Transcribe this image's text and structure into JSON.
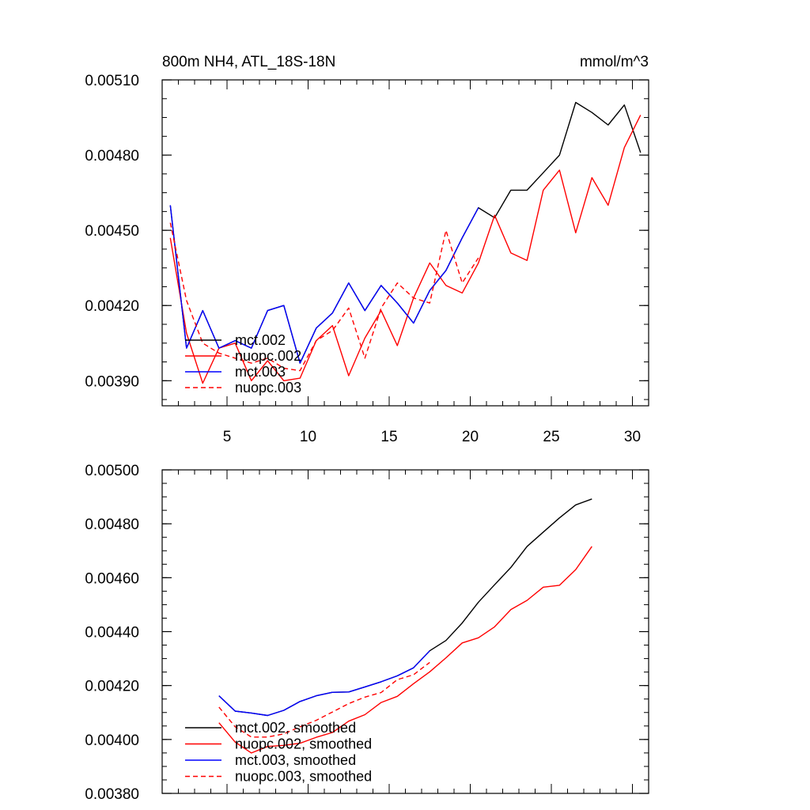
{
  "chart_data": [
    {
      "type": "line",
      "title": "800m NH4, ATL_18S-18N",
      "units": "mmol/m^3",
      "xlabel": "",
      "ylabel": "",
      "xlim": [
        1,
        31
      ],
      "ylim": [
        0.0038,
        0.0051
      ],
      "xticks": [
        "5",
        "10",
        "15",
        "20",
        "25",
        "30"
      ],
      "yticks": [
        "0.00390",
        "0.00420",
        "0.00450",
        "0.00480",
        "0.00510"
      ],
      "legend_position": "bottom-left",
      "series": [
        {
          "name": "mct.002",
          "color": "#000000",
          "dash": false,
          "x": [
            1.5,
            2.5,
            3.5,
            4.5,
            5.5,
            6.5,
            7.5,
            8.5,
            9.5,
            10.5,
            11.5,
            12.5,
            13.5,
            14.5,
            15.5,
            16.5,
            17.5,
            18.5,
            19.5,
            20.5,
            21.5,
            22.5,
            23.5,
            24.5,
            25.5,
            26.5,
            27.5,
            28.5,
            29.5,
            30.5
          ],
          "values": [
            0.0046,
            0.00403,
            0.00418,
            0.00403,
            0.00406,
            0.00403,
            0.00418,
            0.0042,
            0.00397,
            0.00411,
            0.00417,
            0.00429,
            0.00418,
            0.00428,
            0.00421,
            0.00413,
            0.00426,
            0.00434,
            0.00447,
            0.00459,
            0.00455,
            0.00466,
            0.00466,
            0.00473,
            0.0048,
            0.00501,
            0.00497,
            0.00492,
            0.005,
            0.00481
          ]
        },
        {
          "name": "nuopc.002",
          "color": "#ff0000",
          "dash": false,
          "x": [
            1.5,
            2.5,
            3.5,
            4.5,
            5.5,
            6.5,
            7.5,
            8.5,
            9.5,
            10.5,
            11.5,
            12.5,
            13.5,
            14.5,
            15.5,
            16.5,
            17.5,
            18.5,
            19.5,
            20.5,
            21.5,
            22.5,
            23.5,
            24.5,
            25.5,
            26.5,
            27.5,
            28.5,
            29.5,
            30.5
          ],
          "values": [
            0.00447,
            0.00409,
            0.00389,
            0.00403,
            0.00405,
            0.0039,
            0.00398,
            0.0039,
            0.00391,
            0.00406,
            0.00412,
            0.00392,
            0.00407,
            0.00418,
            0.00404,
            0.00423,
            0.00437,
            0.00428,
            0.00425,
            0.00437,
            0.00456,
            0.00441,
            0.00438,
            0.00466,
            0.00474,
            0.00449,
            0.00471,
            0.0046,
            0.00483,
            0.00496
          ]
        },
        {
          "name": "mct.003",
          "color": "#0000ff",
          "dash": false,
          "x": [
            1.5,
            2.5,
            3.5,
            4.5,
            5.5,
            6.5,
            7.5,
            8.5,
            9.5,
            10.5,
            11.5,
            12.5,
            13.5,
            14.5,
            15.5,
            16.5,
            17.5,
            18.5,
            19.5,
            20.5
          ],
          "values": [
            0.0046,
            0.00403,
            0.00418,
            0.00403,
            0.00406,
            0.00403,
            0.00418,
            0.0042,
            0.00397,
            0.00411,
            0.00417,
            0.00429,
            0.00418,
            0.00428,
            0.00421,
            0.00413,
            0.00426,
            0.00434,
            0.00447,
            0.00459
          ]
        },
        {
          "name": "nuopc.003",
          "color": "#ff0000",
          "dash": true,
          "x": [
            1.5,
            2.5,
            3.5,
            4.5,
            5.5,
            6.5,
            7.5,
            8.5,
            9.5,
            10.5,
            11.5,
            12.5,
            13.5,
            14.5,
            15.5,
            16.5,
            17.5,
            18.5,
            19.5,
            20.5
          ],
          "values": [
            0.00453,
            0.00422,
            0.00405,
            0.00401,
            0.00399,
            0.00397,
            0.00399,
            0.00395,
            0.00394,
            0.00406,
            0.0041,
            0.00419,
            0.00399,
            0.00419,
            0.00429,
            0.00423,
            0.00421,
            0.0045,
            0.00429,
            0.00439
          ]
        }
      ]
    },
    {
      "type": "line",
      "title": "",
      "xlabel": "",
      "ylabel": "",
      "xlim": [
        1,
        31
      ],
      "ylim": [
        0.0038,
        0.005
      ],
      "xticks": [],
      "yticks": [
        "0.00380",
        "0.00400",
        "0.00420",
        "0.00440",
        "0.00460",
        "0.00480",
        "0.00500"
      ],
      "legend_position": "bottom-left",
      "series": [
        {
          "name": "mct.002, smoothed",
          "color": "#000000",
          "dash": false,
          "x": [
            4.5,
            5.5,
            6.5,
            7.5,
            8.5,
            9.5,
            10.5,
            11.5,
            12.5,
            13.5,
            14.5,
            15.5,
            16.5,
            17.5,
            18.5,
            19.5,
            20.5,
            21.5,
            22.5,
            23.5,
            24.5,
            25.5,
            26.5,
            27.5
          ],
          "values": [
            0.004162,
            0.004105,
            0.004098,
            0.004089,
            0.004108,
            0.004141,
            0.004162,
            0.004175,
            0.004176,
            0.004195,
            0.004214,
            0.004236,
            0.004266,
            0.004329,
            0.004367,
            0.004432,
            0.004509,
            0.004574,
            0.004638,
            0.004716,
            0.004769,
            0.004822,
            0.00487,
            0.004892
          ]
        },
        {
          "name": "nuopc.002, smoothed",
          "color": "#ff0000",
          "dash": false,
          "x": [
            4.5,
            5.5,
            6.5,
            7.5,
            8.5,
            9.5,
            10.5,
            11.5,
            12.5,
            13.5,
            14.5,
            15.5,
            16.5,
            17.5,
            18.5,
            19.5,
            20.5,
            21.5,
            22.5,
            23.5,
            24.5,
            25.5,
            26.5,
            27.5
          ],
          "values": [
            0.004062,
            0.00399,
            0.00395,
            0.003974,
            0.003978,
            0.003986,
            0.004008,
            0.004026,
            0.004068,
            0.004092,
            0.004137,
            0.00416,
            0.004207,
            0.004251,
            0.004303,
            0.004358,
            0.004377,
            0.004418,
            0.004482,
            0.004516,
            0.004565,
            0.004572,
            0.00463,
            0.004716
          ]
        },
        {
          "name": "mct.003, smoothed",
          "color": "#0000ff",
          "dash": false,
          "x": [
            4.5,
            5.5,
            6.5,
            7.5,
            8.5,
            9.5,
            10.5,
            11.5,
            12.5,
            13.5,
            14.5,
            15.5,
            16.5,
            17.5
          ],
          "values": [
            0.004162,
            0.004105,
            0.004098,
            0.004089,
            0.004108,
            0.004141,
            0.004162,
            0.004175,
            0.004176,
            0.004195,
            0.004214,
            0.004236,
            0.004266,
            0.004329
          ]
        },
        {
          "name": "nuopc.003, smoothed",
          "color": "#ff0000",
          "dash": true,
          "x": [
            4.5,
            5.5,
            6.5,
            7.5,
            8.5,
            9.5,
            10.5,
            11.5,
            12.5,
            13.5,
            14.5,
            15.5,
            16.5,
            17.5
          ],
          "values": [
            0.00412,
            0.004047,
            0.004009,
            0.004009,
            0.004021,
            0.004047,
            0.004071,
            0.004102,
            0.004133,
            0.004157,
            0.004174,
            0.004222,
            0.00424,
            0.004286
          ]
        }
      ]
    }
  ]
}
